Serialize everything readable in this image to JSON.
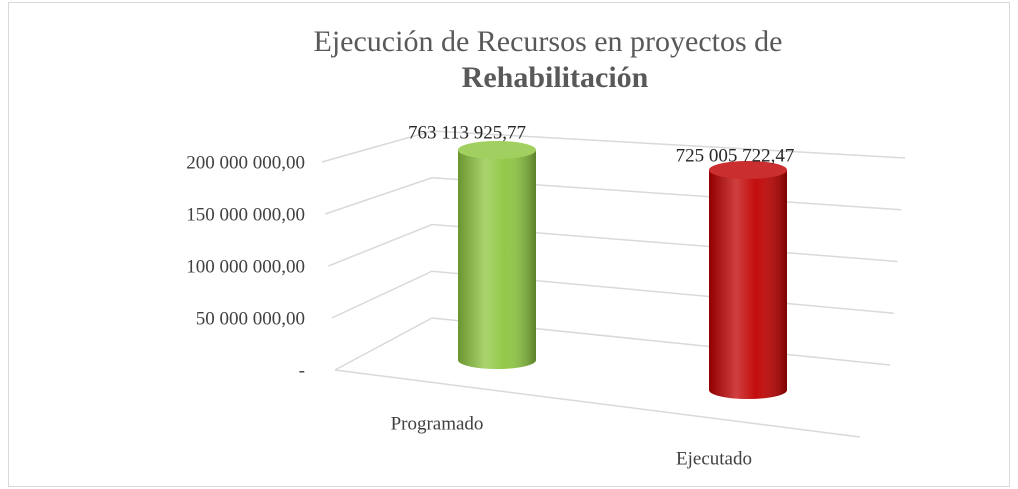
{
  "chart_data": {
    "type": "bar3d",
    "title": [
      "Ejecución de Recursos en proyectos de",
      "Rehabilitación"
    ],
    "categories": [
      "Programado",
      "Ejecutado"
    ],
    "values": [
      763113925.77,
      725005722.47
    ],
    "value_labels": [
      "763 113 925,77",
      "725 005 722,47"
    ],
    "colors": [
      "#8dc63f",
      "#c00000"
    ],
    "ylim": [
      0,
      200000000
    ],
    "yticks": [
      {
        "value": 0,
        "label": "-"
      },
      {
        "value": 50000000,
        "label": "50 000 000,00"
      },
      {
        "value": 100000000,
        "label": "100 000 000,00"
      },
      {
        "value": 150000000,
        "label": "150 000 000,00"
      },
      {
        "value": 200000000,
        "label": "200 000 000,00"
      }
    ],
    "grid": true
  }
}
